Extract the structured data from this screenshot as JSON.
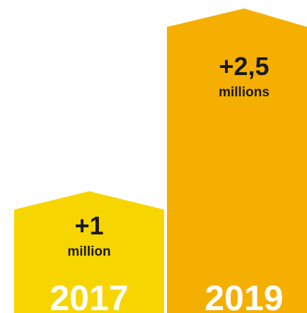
{
  "chart_data": {
    "type": "bar",
    "categories": [
      "2017",
      "2019"
    ],
    "values": [
      1,
      2.5
    ],
    "value_labels": [
      {
        "main": "+1",
        "unit": "million"
      },
      {
        "main": "+2,5",
        "unit": "millions"
      }
    ],
    "title": "",
    "xlabel": "",
    "ylabel": "",
    "ylim": [
      0,
      2.5
    ],
    "grid": false,
    "legend": "none"
  },
  "colors": {
    "bar_2017": "#F7D500",
    "bar_2019": "#F5AF00",
    "year_text": "#FFFFFF",
    "value_text": "#1A1A1A"
  }
}
